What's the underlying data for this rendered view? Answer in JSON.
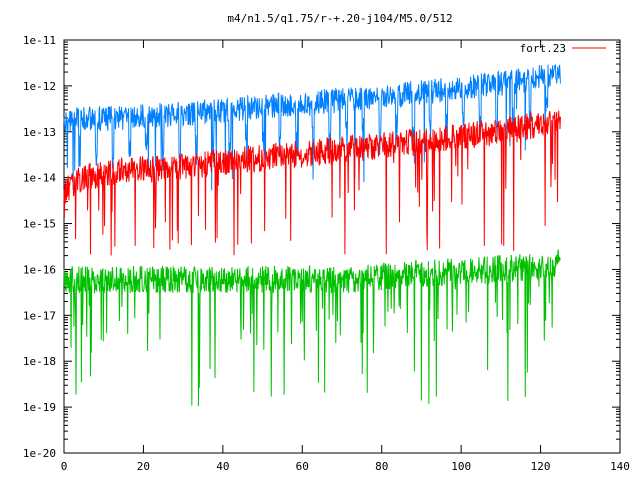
{
  "chart_data": {
    "type": "line",
    "title": "m4/n1.5/q1.75/r-+.20-j104/M5.0/512",
    "xlabel": "",
    "ylabel": "",
    "x_scale": "linear",
    "y_scale": "log",
    "xlim": [
      0,
      140
    ],
    "ylim": [
      1e-20,
      1e-11
    ],
    "x_ticks": [
      0,
      20,
      40,
      60,
      80,
      100,
      120,
      140
    ],
    "x_tick_labels": [
      "0",
      "20",
      "40",
      "60",
      "80",
      "100",
      "120",
      "140"
    ],
    "y_ticks": [
      1e-20,
      1e-19,
      1e-18,
      1e-17,
      1e-16,
      1e-15,
      1e-14,
      1e-13,
      1e-12,
      1e-11
    ],
    "y_tick_labels": [
      "1e-20",
      "1e-19",
      "1e-18",
      "1e-17",
      "1e-16",
      "1e-15",
      "1e-14",
      "1e-13",
      "1e-12",
      "1e-11"
    ],
    "grid": false,
    "legend_position": "top-right",
    "series": [
      {
        "name": "fort.23",
        "color": "#ff0000",
        "x": [
          0,
          5,
          10,
          15,
          20,
          25,
          30,
          35,
          40,
          45,
          50,
          55,
          60,
          65,
          70,
          75,
          80,
          85,
          90,
          95,
          100,
          105,
          110,
          115,
          120,
          125
        ],
        "y": [
          5e-15,
          1e-14,
          1.2e-14,
          1.4e-14,
          1.5e-14,
          1.6e-14,
          1.8e-14,
          2e-14,
          2.2e-14,
          2.4e-14,
          2.7e-14,
          3e-14,
          3.3e-14,
          3.6e-14,
          4e-14,
          4.5e-14,
          5e-14,
          5.5e-14,
          6e-14,
          7e-14,
          8e-14,
          9e-14,
          1e-13,
          1.2e-13,
          1.5e-13,
          2e-13
        ],
        "x_range": [
          0,
          125
        ],
        "typical_min": 2e-16,
        "typical_max": 3e-13
      },
      {
        "color": "#0080ff",
        "x": [
          0,
          5,
          10,
          15,
          20,
          25,
          30,
          35,
          40,
          45,
          50,
          55,
          60,
          65,
          70,
          75,
          80,
          85,
          90,
          95,
          100,
          105,
          110,
          115,
          120,
          125
        ],
        "y": [
          1.5e-13,
          2e-13,
          2e-13,
          2e-13,
          2.2e-13,
          2.3e-13,
          2.5e-13,
          2.7e-13,
          3e-13,
          3.3e-13,
          3.5e-13,
          3.8e-13,
          4e-13,
          4.5e-13,
          5e-13,
          5.5e-13,
          6e-13,
          6.5e-13,
          7e-13,
          8e-13,
          9e-13,
          1e-12,
          1.1e-12,
          1.3e-12,
          1.6e-12,
          2e-12
        ],
        "x_range": [
          0,
          125
        ],
        "typical_min": 5e-15,
        "typical_max": 3e-12
      },
      {
        "color": "#00c000",
        "x": [
          0,
          5,
          10,
          15,
          20,
          25,
          30,
          35,
          40,
          45,
          50,
          55,
          60,
          65,
          70,
          75,
          80,
          85,
          90,
          95,
          100,
          105,
          110,
          115,
          120,
          125
        ],
        "y": [
          6e-17,
          6e-17,
          6e-17,
          6e-17,
          6e-17,
          6e-17,
          6e-17,
          6e-17,
          6e-17,
          6e-17,
          6e-17,
          6e-17,
          6e-17,
          6e-17,
          6e-17,
          6.5e-17,
          7e-17,
          7.5e-17,
          8e-17,
          8.5e-17,
          9e-17,
          9.5e-17,
          1e-16,
          1.1e-16,
          1.2e-16,
          1.4e-16
        ],
        "x_range": [
          0,
          125
        ],
        "typical_min": 1e-19,
        "typical_max": 3e-16
      }
    ]
  }
}
